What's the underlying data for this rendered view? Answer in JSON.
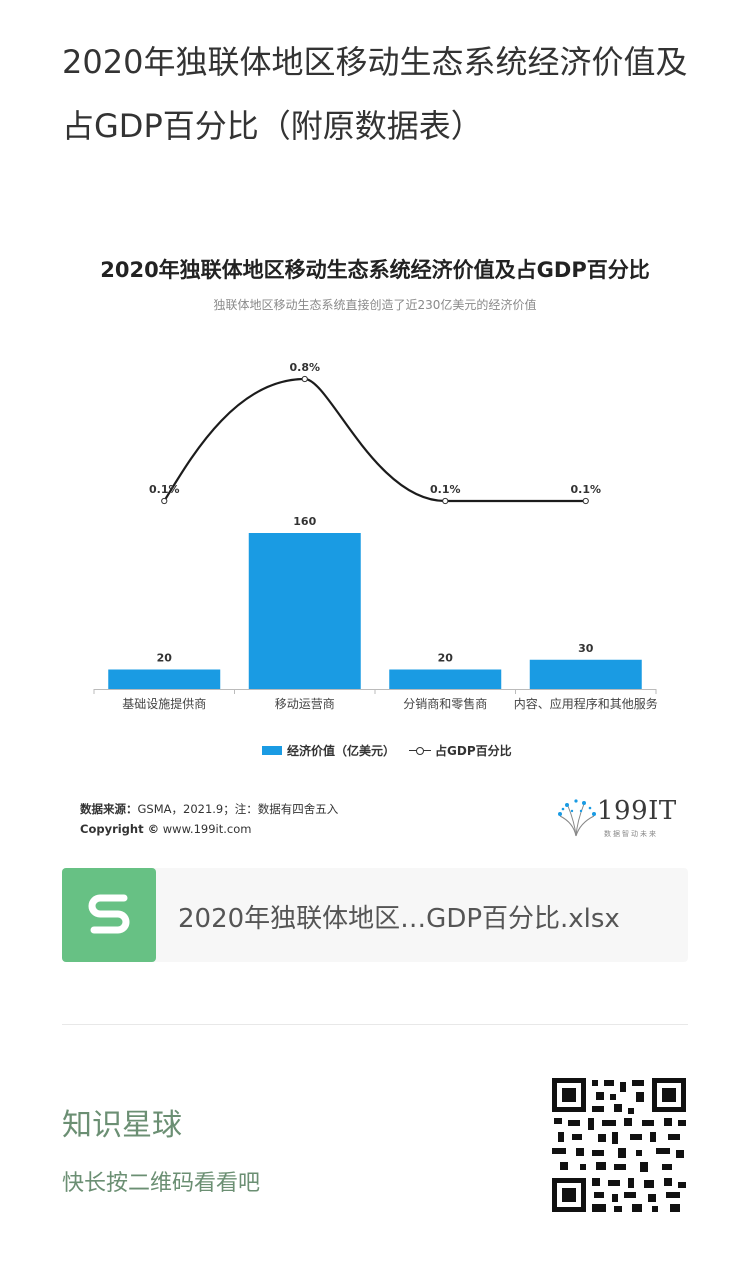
{
  "article": {
    "title": "2020年独联体地区移动生态系统经济价值及占GDP百分比（附原数据表）"
  },
  "chart": {
    "title": "2020年独联体地区移动生态系统经济价值及占GDP百分比",
    "subtitle": "独联体地区移动生态系统直接创造了近230亿美元的经济价值",
    "legend_bar": "经济价值（亿美元）",
    "legend_line": "占GDP百分比",
    "source_label": "数据来源：",
    "source_text": "GSMA，2021.9；注：数据有四舍五入",
    "copyright_label": "Copyright ©",
    "copyright_text": "www.199it.com",
    "logo_text": "199IT",
    "logo_tagline": "数据智动未来"
  },
  "chart_data": {
    "type": "bar",
    "title": "2020年独联体地区移动生态系统经济价值及占GDP百分比",
    "categories": [
      "基础设施提供商",
      "移动运营商",
      "分销商和零售商",
      "内容、应用程序和其他服务"
    ],
    "series": [
      {
        "name": "经济价值（亿美元）",
        "type": "bar",
        "values": [
          20,
          160,
          20,
          30
        ],
        "labels": [
          "20",
          "160",
          "20",
          "30"
        ]
      },
      {
        "name": "占GDP百分比",
        "type": "line",
        "values": [
          0.1,
          0.8,
          0.1,
          0.1
        ],
        "labels": [
          "0.1%",
          "0.8%",
          "0.1%",
          "0.1%"
        ]
      }
    ],
    "ylim": [
      0,
      180
    ],
    "line_ylim": [
      0,
      0.9
    ],
    "grid": false
  },
  "attachment": {
    "file_name": "2020年独联体地区…GDP百分比.xlsx"
  },
  "promo": {
    "title": "知识星球",
    "subtitle": "快长按二维码看看吧"
  },
  "colors": {
    "bar": "#1a9be3",
    "line": "#1c1c1c",
    "file_icon": "#67c184",
    "promo_text": "#6b8f73"
  }
}
